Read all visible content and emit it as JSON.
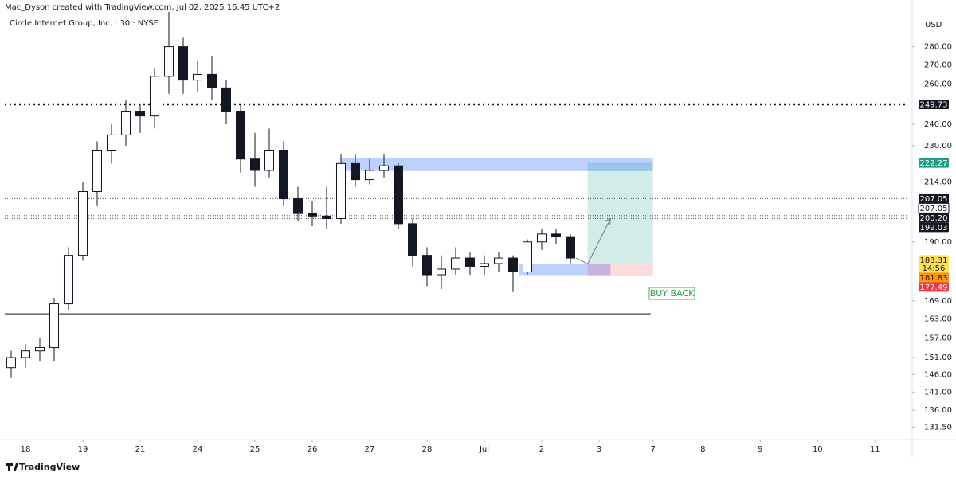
{
  "chart_data": {
    "type": "candlestick",
    "credit": "Mac_Dyson created with TradingView.com, Jul 02, 2025 16:45 UTC+2",
    "title": "Circle Internet Group, Inc. · 30 · NYSE",
    "currency": "USD",
    "brand": "TradingView",
    "annotation": "BUY BACK",
    "log_scale": true,
    "xlim": [
      -0.361,
      15.389
    ],
    "ylim": [
      128.3,
      300
    ],
    "xticks": [
      {
        "value": 0,
        "label": "18"
      },
      {
        "value": 1,
        "label": "19"
      },
      {
        "value": 2,
        "label": "21"
      },
      {
        "value": 3,
        "label": "24"
      },
      {
        "value": 4,
        "label": "25"
      },
      {
        "value": 5,
        "label": "26"
      },
      {
        "value": 6,
        "label": "27"
      },
      {
        "value": 7,
        "label": "28"
      },
      {
        "value": 8,
        "label": "Jul"
      },
      {
        "value": 9,
        "label": "2"
      },
      {
        "value": 10,
        "label": "3"
      },
      {
        "value": 10.94,
        "label": "7"
      },
      {
        "value": 11.81,
        "label": "8"
      },
      {
        "value": 12.81,
        "label": "9"
      },
      {
        "value": 13.81,
        "label": "10"
      },
      {
        "value": 14.81,
        "label": "11"
      }
    ],
    "yticks": [
      {
        "value": 280,
        "label": "280.00"
      },
      {
        "value": 270,
        "label": "270.00"
      },
      {
        "value": 260,
        "label": "260.00"
      },
      {
        "value": 240,
        "label": "240.00"
      },
      {
        "value": 230,
        "label": "230.00"
      },
      {
        "value": 214,
        "label": "214.00"
      },
      {
        "value": 190,
        "label": "190.00"
      },
      {
        "value": 169,
        "label": "169.00"
      },
      {
        "value": 163,
        "label": "163.00"
      },
      {
        "value": 157,
        "label": "157.00"
      },
      {
        "value": 151,
        "label": "151.00"
      },
      {
        "value": 146,
        "label": "146.00"
      },
      {
        "value": 141,
        "label": "141.00"
      },
      {
        "value": 136,
        "label": "136.00"
      },
      {
        "value": 131.5,
        "label": "131.50"
      }
    ],
    "up_color": "#ffffff",
    "down_color": "#131722",
    "x": [
      -0.25,
      0,
      0.25,
      0.5,
      0.75,
      1,
      1.25,
      1.5,
      1.75,
      2,
      2.25,
      2.5,
      2.75,
      3,
      3.25,
      3.5,
      3.75,
      4,
      4.25,
      4.5,
      4.75,
      5,
      5.25,
      5.5,
      5.75,
      6,
      6.25,
      6.5,
      6.75,
      7,
      7.25,
      7.5,
      7.75,
      8,
      8.25,
      8.5,
      8.75,
      9,
      9.25,
      9.5
    ],
    "open": [
      148,
      151,
      153,
      154,
      168,
      185,
      210,
      228,
      235,
      246,
      244,
      264,
      280,
      262,
      265,
      258,
      246,
      224,
      219,
      228,
      207,
      201,
      200,
      199,
      222,
      215,
      219,
      221,
      197,
      185,
      178,
      180,
      184,
      181,
      182,
      184,
      179,
      190,
      193,
      192
    ],
    "high": [
      153,
      155,
      157,
      170,
      188,
      214,
      232,
      240,
      252,
      250,
      268,
      300,
      285,
      272,
      275,
      262,
      250,
      236,
      238,
      232,
      212,
      206,
      212,
      226,
      226,
      224,
      226,
      222,
      199,
      188,
      185,
      188,
      186,
      185,
      186,
      185,
      191,
      195,
      195,
      193
    ],
    "low": [
      145,
      148,
      150,
      150,
      166,
      183,
      204,
      222,
      230,
      236,
      238,
      255,
      255,
      256,
      252,
      240,
      218,
      212,
      216,
      204,
      198,
      196,
      195,
      197,
      212,
      213,
      216,
      195,
      181,
      174,
      173,
      178,
      178,
      178,
      179,
      172,
      178,
      187,
      189,
      182
    ],
    "close": [
      151,
      153,
      154,
      168,
      185,
      210,
      228,
      235,
      246,
      244,
      264,
      280,
      262,
      265,
      258,
      246,
      224,
      219,
      228,
      207,
      201,
      200,
      199,
      222,
      215,
      219,
      221,
      197,
      185,
      178,
      180,
      184,
      181,
      182,
      184,
      179,
      190,
      193,
      192,
      184
    ],
    "levels": [
      {
        "value": 249.73,
        "style": "dotted-bold",
        "color": "#131722"
      },
      {
        "value": 207.05,
        "style": "dotted",
        "color": "#555555"
      },
      {
        "value": 200.2,
        "style": "dotted",
        "color": "#555555"
      },
      {
        "value": 199.03,
        "style": "dotted",
        "color": "#555555"
      },
      {
        "value": 181.83,
        "style": "solid",
        "color": "#131722",
        "x": [
          -0.361,
          10.9
        ]
      },
      {
        "value": 164.7,
        "style": "solid",
        "color": "#131722",
        "x": [
          -0.361,
          10.9
        ]
      }
    ],
    "zones": [
      {
        "x": [
          5.5,
          10.94
        ],
        "y": [
          218.7,
          224.5
        ],
        "color": "#2962ff"
      },
      {
        "x": [
          8.6,
          10.2
        ],
        "y": [
          177.9,
          181.83
        ],
        "color": "#2962ff"
      }
    ],
    "position": {
      "x": [
        9.8,
        10.94
      ],
      "entry": 181.83,
      "target": 222.27,
      "stop": 177.49,
      "profit_color": "#089981",
      "loss_color": "#f23645"
    },
    "arrow": [
      [
        9.6,
        184
      ],
      [
        9.8,
        181.83
      ],
      [
        10.2,
        199
      ]
    ],
    "price_labels": [
      {
        "value": 249.73,
        "label": "249.73",
        "bg": "#131722",
        "fg": "#ffffff"
      },
      {
        "value": 222.27,
        "label": "222.27",
        "bg": "#1b9e84",
        "fg": "#ffffff"
      },
      {
        "value": 207.05,
        "label": "207.05",
        "bg": "#131722",
        "fg": "#ffffff"
      },
      {
        "value": 207.05,
        "label": "207.05",
        "bg": "#ffffff",
        "fg": "#131722"
      },
      {
        "value": 200.2,
        "label": "200.20",
        "bg": "#131722",
        "fg": "#ffffff"
      },
      {
        "value": 199.03,
        "label": "199.03",
        "bg": "#131722",
        "fg": "#ffffff"
      },
      {
        "value": 183.31,
        "label": "183.31",
        "bg": "#ffe14d",
        "fg": "#131722",
        "countdown": "14:56"
      },
      {
        "value": 181.83,
        "label": "181.83",
        "bg": "#ff9800",
        "fg": "#131722"
      },
      {
        "value": 177.49,
        "label": "177.49",
        "bg": "#f23645",
        "fg": "#ffffff"
      }
    ]
  }
}
